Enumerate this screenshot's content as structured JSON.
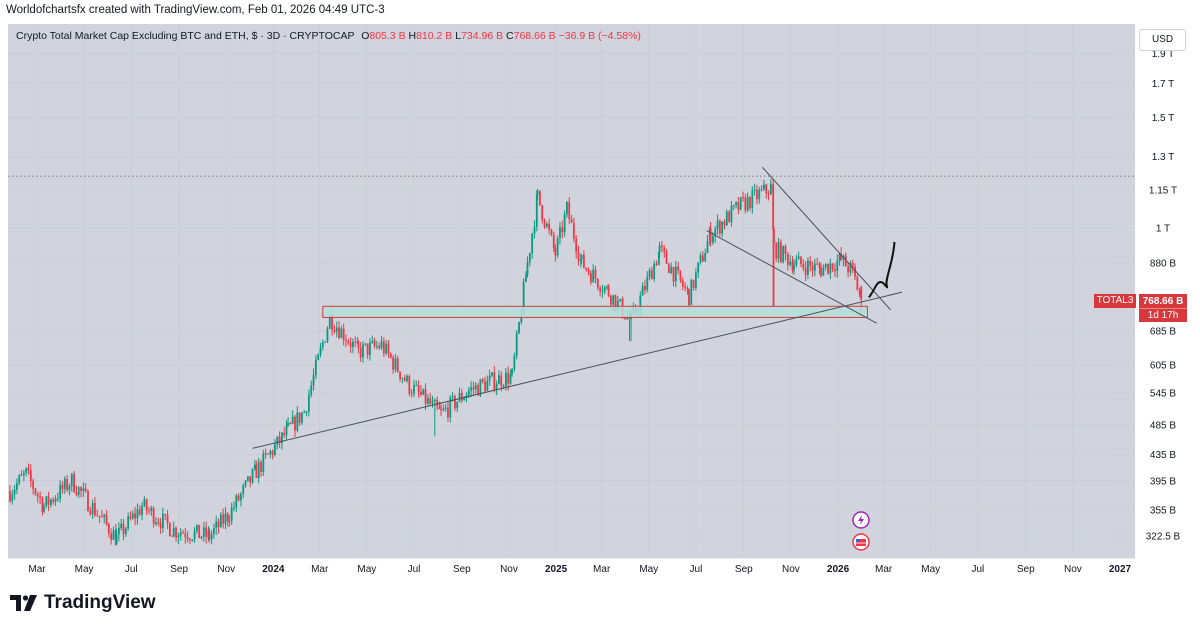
{
  "header": {
    "attribution": "Worldofchartsfx created with TradingView.com, Feb 01, 2026 04:49 UTC-3"
  },
  "legend": {
    "title": "Crypto Total Market Cap Excluding BTC and ETH, $ · 3D · CRYPTOCAP",
    "o_label": "O",
    "o_value": "805.3 B",
    "h_label": "H",
    "h_value": "810.2 B",
    "l_label": "L",
    "l_value": "734.96 B",
    "c_label": "C",
    "c_value": "768.66 B",
    "change": "−36.9 B (−4.58%)"
  },
  "currency": "USD",
  "price_tag": {
    "symbol": "TOTAL3",
    "price": "768.66 B",
    "countdown": "1d 17h"
  },
  "footer": {
    "brand": "TradingView"
  },
  "colors": {
    "up": "#089981",
    "down": "#f23645",
    "background": "#d1d4dc",
    "zone_fill": "#b2dfdb",
    "zone_border": "#d8383c",
    "price_tag": "#d8383c"
  },
  "icons": [
    "lightning-event-icon",
    "us-flag-event-icon",
    "tradingview-logo-icon"
  ],
  "chart_data": {
    "type": "candlestick",
    "y_scale": "log",
    "y_ticks": [
      {
        "label": "1.9 T",
        "value": 1900
      },
      {
        "label": "1.7 T",
        "value": 1700
      },
      {
        "label": "1.5 T",
        "value": 1500
      },
      {
        "label": "1.3 T",
        "value": 1300
      },
      {
        "label": "1.15 T",
        "value": 1150
      },
      {
        "label": "1 T",
        "value": 1000
      },
      {
        "label": "880 B",
        "value": 880
      },
      {
        "label": "685 B",
        "value": 685
      },
      {
        "label": "605 B",
        "value": 605
      },
      {
        "label": "545 B",
        "value": 545
      },
      {
        "label": "485 B",
        "value": 485
      },
      {
        "label": "435 B",
        "value": 435
      },
      {
        "label": "395 B",
        "value": 395
      },
      {
        "label": "355 B",
        "value": 355
      },
      {
        "label": "322.5 B",
        "value": 322.5
      }
    ],
    "x_ticks": [
      {
        "label": "Mar",
        "date": "2023-03-01",
        "bold": false
      },
      {
        "label": "May",
        "date": "2023-05-01",
        "bold": false
      },
      {
        "label": "Jul",
        "date": "2023-07-01",
        "bold": false
      },
      {
        "label": "Sep",
        "date": "2023-09-01",
        "bold": false
      },
      {
        "label": "Nov",
        "date": "2023-11-01",
        "bold": false
      },
      {
        "label": "2024",
        "date": "2024-01-01",
        "bold": true
      },
      {
        "label": "Mar",
        "date": "2024-03-01",
        "bold": false
      },
      {
        "label": "May",
        "date": "2024-05-01",
        "bold": false
      },
      {
        "label": "Jul",
        "date": "2024-07-01",
        "bold": false
      },
      {
        "label": "Sep",
        "date": "2024-09-01",
        "bold": false
      },
      {
        "label": "Nov",
        "date": "2024-11-01",
        "bold": false
      },
      {
        "label": "2025",
        "date": "2025-01-01",
        "bold": true
      },
      {
        "label": "Mar",
        "date": "2025-03-01",
        "bold": false
      },
      {
        "label": "May",
        "date": "2025-05-01",
        "bold": false
      },
      {
        "label": "Jul",
        "date": "2025-07-01",
        "bold": false
      },
      {
        "label": "Sep",
        "date": "2025-09-01",
        "bold": false
      },
      {
        "label": "Nov",
        "date": "2025-11-01",
        "bold": false
      },
      {
        "label": "2026",
        "date": "2026-01-01",
        "bold": true
      },
      {
        "label": "Mar",
        "date": "2026-03-01",
        "bold": false
      },
      {
        "label": "May",
        "date": "2026-05-01",
        "bold": false
      },
      {
        "label": "Jul",
        "date": "2026-07-01",
        "bold": false
      },
      {
        "label": "Sep",
        "date": "2026-09-01",
        "bold": false
      },
      {
        "label": "Nov",
        "date": "2026-11-01",
        "bold": false
      },
      {
        "label": "2027",
        "date": "2027-01-01",
        "bold": true
      }
    ],
    "price_path": [
      [
        "2023-01-25",
        380
      ],
      [
        "2023-02-15",
        405
      ],
      [
        "2023-03-10",
        360
      ],
      [
        "2023-04-15",
        395
      ],
      [
        "2023-06-12",
        320
      ],
      [
        "2023-07-15",
        360
      ],
      [
        "2023-08-25",
        330
      ],
      [
        "2023-10-10",
        322
      ],
      [
        "2023-11-05",
        350
      ],
      [
        "2023-12-10",
        410
      ],
      [
        "2024-01-20",
        475
      ],
      [
        "2024-02-10",
        510
      ],
      [
        "2024-03-14",
        720
      ],
      [
        "2024-04-20",
        635
      ],
      [
        "2024-05-20",
        650
      ],
      [
        "2024-06-25",
        560
      ],
      [
        "2024-08-05",
        505
      ],
      [
        "2024-09-10",
        550
      ],
      [
        "2024-10-10",
        570
      ],
      [
        "2024-11-05",
        580
      ],
      [
        "2024-11-25",
        880
      ],
      [
        "2024-12-08",
        1120
      ],
      [
        "2024-12-31",
        910
      ],
      [
        "2025-01-15",
        1070
      ],
      [
        "2025-02-03",
        880
      ],
      [
        "2025-03-10",
        790
      ],
      [
        "2025-04-08",
        710
      ],
      [
        "2025-05-15",
        920
      ],
      [
        "2025-06-22",
        780
      ],
      [
        "2025-07-20",
        980
      ],
      [
        "2025-08-25",
        1080
      ],
      [
        "2025-10-06",
        1160
      ],
      [
        "2025-10-10",
        930
      ],
      [
        "2025-11-05",
        880
      ],
      [
        "2025-12-10",
        860
      ],
      [
        "2026-01-05",
        890
      ],
      [
        "2026-01-20",
        850
      ],
      [
        "2026-01-31",
        768.66
      ]
    ],
    "wick_spikes": [
      {
        "date": "2024-07-28",
        "low": 465
      },
      {
        "date": "2025-04-07",
        "low": 660
      },
      {
        "date": "2025-10-10",
        "low": 750
      }
    ],
    "last": {
      "date": "2026-01-31",
      "open": 805.3,
      "high": 810.2,
      "low": 734.96,
      "close": 768.66
    },
    "drawings": {
      "support_zone": {
        "from": "2024-03-05",
        "to": "2026-02-08",
        "top": 750,
        "bottom": 720
      },
      "ascending_trendline": [
        [
          "2023-12-05",
          445
        ],
        [
          "2026-03-25",
          790
        ]
      ],
      "descending_trendline_top": [
        [
          "2025-09-25",
          1250
        ],
        [
          "2026-03-10",
          740
        ]
      ],
      "descending_trendline_bottom": [
        [
          "2025-07-15",
          990
        ],
        [
          "2026-02-20",
          705
        ]
      ],
      "projection_path": [
        [
          "2026-02-10",
          775
        ],
        [
          "2026-02-25",
          820
        ],
        [
          "2026-03-05",
          810
        ],
        [
          "2026-03-15",
          950
        ]
      ]
    },
    "reference_level": 1210
  }
}
